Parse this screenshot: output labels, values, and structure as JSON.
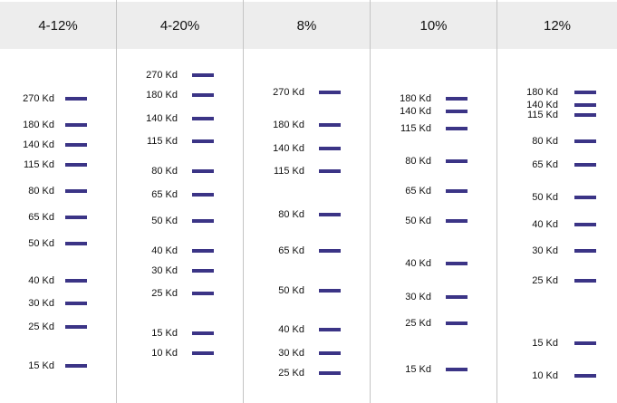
{
  "colors": {
    "band": "#3b3486",
    "header_bg": "#ededed",
    "divider": "#c4c4c4",
    "text": "#111111"
  },
  "lanes": [
    {
      "title": "4-12%",
      "bands": [
        {
          "label": "270 Kd",
          "pos": 0.12
        },
        {
          "label": "180 Kd",
          "pos": 0.2
        },
        {
          "label": "140 Kd",
          "pos": 0.26
        },
        {
          "label": "115 Kd",
          "pos": 0.32
        },
        {
          "label": "80 Kd",
          "pos": 0.4
        },
        {
          "label": "65 Kd",
          "pos": 0.48
        },
        {
          "label": "50 Kd",
          "pos": 0.56
        },
        {
          "label": "40 Kd",
          "pos": 0.67
        },
        {
          "label": "30 Kd",
          "pos": 0.74
        },
        {
          "label": "25 Kd",
          "pos": 0.81
        },
        {
          "label": "15 Kd",
          "pos": 0.93
        }
      ]
    },
    {
      "title": "4-20%",
      "bands": [
        {
          "label": "270 Kd",
          "pos": 0.05
        },
        {
          "label": "180 Kd",
          "pos": 0.11
        },
        {
          "label": "140 Kd",
          "pos": 0.18
        },
        {
          "label": "115 Kd",
          "pos": 0.25
        },
        {
          "label": "80 Kd",
          "pos": 0.34
        },
        {
          "label": "65 Kd",
          "pos": 0.41
        },
        {
          "label": "50 Kd",
          "pos": 0.49
        },
        {
          "label": "40 Kd",
          "pos": 0.58
        },
        {
          "label": "30 Kd",
          "pos": 0.64
        },
        {
          "label": "25 Kd",
          "pos": 0.71
        },
        {
          "label": "15 Kd",
          "pos": 0.83
        },
        {
          "label": "10 Kd",
          "pos": 0.89
        }
      ]
    },
    {
      "title": "8%",
      "bands": [
        {
          "label": "270 Kd",
          "pos": 0.1
        },
        {
          "label": "180 Kd",
          "pos": 0.2
        },
        {
          "label": "140 Kd",
          "pos": 0.27
        },
        {
          "label": "115 Kd",
          "pos": 0.34
        },
        {
          "label": "80 Kd",
          "pos": 0.47
        },
        {
          "label": "65 Kd",
          "pos": 0.58
        },
        {
          "label": "50 Kd",
          "pos": 0.7
        },
        {
          "label": "40 Kd",
          "pos": 0.82
        },
        {
          "label": "30 Kd",
          "pos": 0.89
        },
        {
          "label": "25 Kd",
          "pos": 0.95
        }
      ]
    },
    {
      "title": "10%",
      "bands": [
        {
          "label": "180 Kd",
          "pos": 0.12
        },
        {
          "label": "140 Kd",
          "pos": 0.16
        },
        {
          "label": "115 Kd",
          "pos": 0.21
        },
        {
          "label": "80 Kd",
          "pos": 0.31
        },
        {
          "label": "65 Kd",
          "pos": 0.4
        },
        {
          "label": "50 Kd",
          "pos": 0.49
        },
        {
          "label": "40 Kd",
          "pos": 0.62
        },
        {
          "label": "30 Kd",
          "pos": 0.72
        },
        {
          "label": "25 Kd",
          "pos": 0.8
        },
        {
          "label": "15 Kd",
          "pos": 0.94
        }
      ]
    },
    {
      "title": "12%",
      "bands": [
        {
          "label": "180 Kd",
          "pos": 0.1
        },
        {
          "label": "140 Kd",
          "pos": 0.14
        },
        {
          "label": "115 Kd",
          "pos": 0.17
        },
        {
          "label": "80 Kd",
          "pos": 0.25
        },
        {
          "label": "65 Kd",
          "pos": 0.32
        },
        {
          "label": "50 Kd",
          "pos": 0.42
        },
        {
          "label": "40 Kd",
          "pos": 0.5
        },
        {
          "label": "30 Kd",
          "pos": 0.58
        },
        {
          "label": "25 Kd",
          "pos": 0.67
        },
        {
          "label": "15 Kd",
          "pos": 0.86
        },
        {
          "label": "10 Kd",
          "pos": 0.96
        }
      ]
    }
  ]
}
